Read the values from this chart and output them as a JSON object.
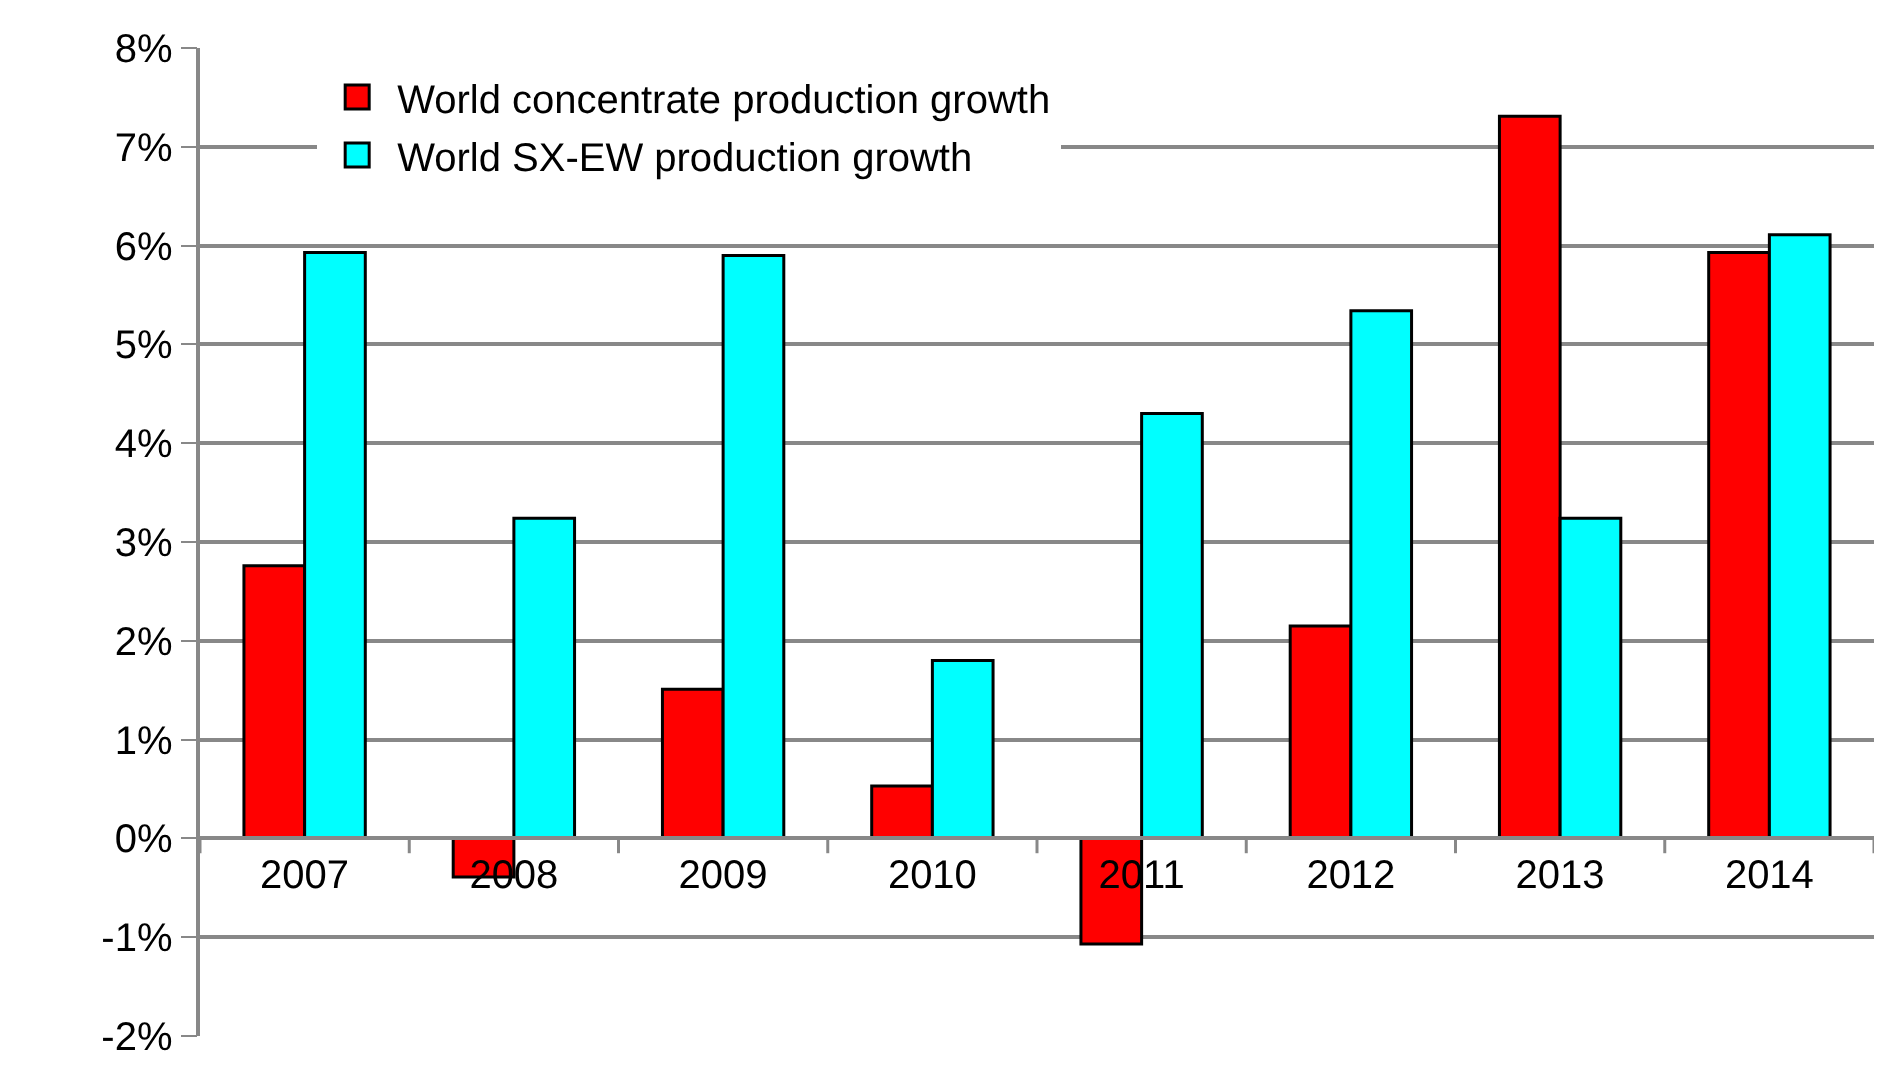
{
  "chart_data": {
    "type": "bar",
    "categories": [
      "2007",
      "2008",
      "2009",
      "2010",
      "2011",
      "2012",
      "2013",
      "2014"
    ],
    "series": [
      {
        "name": "World concentrate production growth",
        "color": "#ff0000",
        "values": [
          2.76,
          -0.39,
          1.51,
          0.53,
          -1.07,
          2.15,
          7.31,
          5.93
        ]
      },
      {
        "name": "World SX-EW production growth",
        "color": "#00ffff",
        "values": [
          5.93,
          3.24,
          5.9,
          1.8,
          4.3,
          5.34,
          3.24,
          6.11
        ]
      }
    ],
    "ylim": [
      -2,
      8
    ],
    "yticks": [
      {
        "value": -2,
        "label": "-2%"
      },
      {
        "value": -1,
        "label": "-1%"
      },
      {
        "value": 0,
        "label": "0%"
      },
      {
        "value": 1,
        "label": "1%"
      },
      {
        "value": 2,
        "label": "2%"
      },
      {
        "value": 3,
        "label": "3%"
      },
      {
        "value": 4,
        "label": "4%"
      },
      {
        "value": 5,
        "label": "5%"
      },
      {
        "value": 6,
        "label": "6%"
      },
      {
        "value": 7,
        "label": "7%"
      },
      {
        "value": 8,
        "label": "8%"
      }
    ],
    "grid": "y",
    "legend": "top left"
  }
}
